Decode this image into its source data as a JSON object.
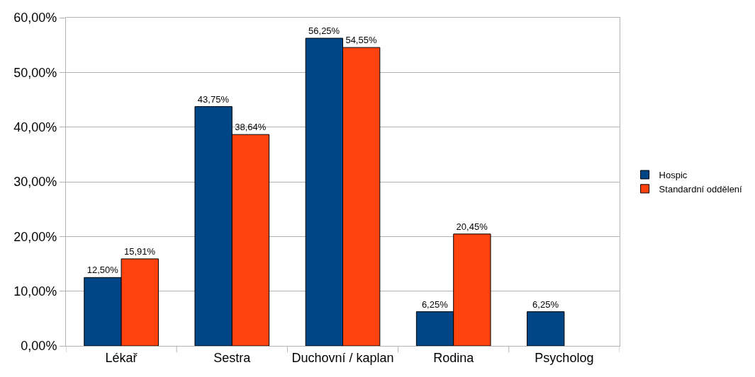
{
  "chart_data": {
    "type": "bar",
    "categories": [
      "Lékař",
      "Sestra",
      "Duchovní / kaplan",
      "Rodina",
      "Psycholog"
    ],
    "series": [
      {
        "name": "Hospic",
        "color": "#004586",
        "values": [
          12.5,
          43.75,
          56.25,
          6.25,
          6.25
        ],
        "value_labels": [
          "12,50%",
          "43,75%",
          "56,25%",
          "6,25%",
          "6,25%"
        ]
      },
      {
        "name": "Standardní oddělení",
        "color": "#ff420e",
        "values": [
          15.91,
          38.64,
          54.55,
          20.45,
          null
        ],
        "value_labels": [
          "15,91%",
          "38,64%",
          "54,55%",
          "20,45%",
          null
        ]
      }
    ],
    "ylim": [
      0,
      60
    ],
    "yticks": [
      {
        "value": 0,
        "label": "0,00%"
      },
      {
        "value": 10,
        "label": "10,00%"
      },
      {
        "value": 20,
        "label": "20,00%"
      },
      {
        "value": 30,
        "label": "30,00%"
      },
      {
        "value": 40,
        "label": "40,00%"
      },
      {
        "value": 50,
        "label": "50,00%"
      },
      {
        "value": 60,
        "label": "60,00%"
      }
    ],
    "grid": "y",
    "legend": "right"
  }
}
